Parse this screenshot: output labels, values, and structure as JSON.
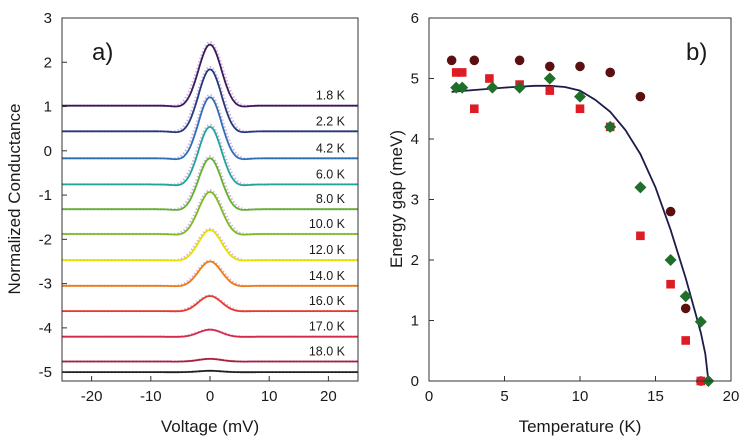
{
  "chart_data": [
    {
      "type": "line",
      "panel_label": "a)",
      "xlabel": "Voltage (mV)",
      "ylabel": "Normalized Conductance",
      "xlim": [
        -25,
        25
      ],
      "ylim": [
        -5.2,
        3.0
      ],
      "xticks": [
        -20,
        -10,
        0,
        10,
        20
      ],
      "yticks": [
        -5,
        -4,
        -3,
        -2,
        -1,
        0,
        1,
        2,
        3
      ],
      "peak_width_mV": 1.9,
      "series": [
        {
          "name": "1.8 K",
          "baseline": 1.02,
          "peak_height": 1.38,
          "color": "#3a1a5a"
        },
        {
          "name": "2.2 K",
          "baseline": 0.44,
          "peak_height": 1.4,
          "color": "#243a7a"
        },
        {
          "name": "4.2 K",
          "baseline": -0.17,
          "peak_height": 1.38,
          "color": "#2f6fb8"
        },
        {
          "name": "6.0 K",
          "baseline": -0.76,
          "peak_height": 1.3,
          "color": "#1fa69a"
        },
        {
          "name": "8.0 K",
          "baseline": -1.32,
          "peak_height": 1.15,
          "color": "#5fb32e"
        },
        {
          "name": "10.0 K",
          "baseline": -1.88,
          "peak_height": 0.95,
          "color": "#7fba20"
        },
        {
          "name": "12.0 K",
          "baseline": -2.47,
          "peak_height": 0.68,
          "color": "#e8e000"
        },
        {
          "name": "14.0 K",
          "baseline": -3.05,
          "peak_height": 0.55,
          "color": "#f07a10"
        },
        {
          "name": "16.0 K",
          "baseline": -3.62,
          "peak_height": 0.34,
          "color": "#e83a2a"
        },
        {
          "name": "17.0 K",
          "baseline": -4.2,
          "peak_height": 0.16,
          "color": "#d42a4a"
        },
        {
          "name": "18.0 K",
          "baseline": -4.76,
          "peak_height": 0.06,
          "color": "#a8203a"
        },
        {
          "name": "",
          "baseline": -5.0,
          "peak_height": 0.03,
          "color": "#222222"
        }
      ]
    },
    {
      "type": "scatter",
      "panel_label": "b)",
      "xlabel": "Temperature (K)",
      "ylabel": "Energy gap (meV)",
      "xlim": [
        0,
        20
      ],
      "ylim": [
        0,
        6
      ],
      "xticks": [
        0,
        5,
        10,
        15,
        20
      ],
      "yticks": [
        0,
        1,
        2,
        3,
        4,
        5,
        6
      ],
      "series": [
        {
          "name": "circles",
          "marker": "circle",
          "color": "#5a1010",
          "x": [
            1.5,
            3.0,
            6.0,
            8.0,
            10.0,
            12.0,
            14.0,
            16.0,
            17.0,
            18.0
          ],
          "y": [
            5.3,
            5.3,
            5.3,
            5.2,
            5.2,
            5.1,
            4.7,
            2.8,
            1.2,
            0.0
          ]
        },
        {
          "name": "squares",
          "marker": "square",
          "color": "#dd1c26",
          "x": [
            1.8,
            2.2,
            3.0,
            4.0,
            6.0,
            8.0,
            10.0,
            12.0,
            14.0,
            16.0,
            17.0,
            18.0
          ],
          "y": [
            5.1,
            5.1,
            4.5,
            5.0,
            4.9,
            4.8,
            4.5,
            4.2,
            2.4,
            1.6,
            0.67,
            0.0
          ]
        },
        {
          "name": "diamonds",
          "marker": "diamond",
          "color": "#1f6e2a",
          "x": [
            1.8,
            2.2,
            4.2,
            6.0,
            8.0,
            10.0,
            12.0,
            14.0,
            16.0,
            17.0,
            18.0,
            18.5
          ],
          "y": [
            4.85,
            4.85,
            4.85,
            4.85,
            5.0,
            4.7,
            4.2,
            3.2,
            2.0,
            1.4,
            0.98,
            0.0
          ]
        },
        {
          "name": "BCS fit",
          "marker": "line",
          "color": "#1c1c4a",
          "x": [
            1.5,
            3.0,
            5.0,
            7.0,
            8.0,
            9.0,
            10.0,
            11.0,
            12.0,
            13.0,
            14.0,
            15.0,
            16.0,
            17.0,
            17.5,
            18.0,
            18.3,
            18.5
          ],
          "y": [
            4.78,
            4.81,
            4.85,
            4.88,
            4.88,
            4.86,
            4.8,
            4.65,
            4.45,
            4.15,
            3.75,
            3.2,
            2.5,
            1.7,
            1.25,
            0.8,
            0.45,
            0.0
          ]
        }
      ]
    }
  ]
}
